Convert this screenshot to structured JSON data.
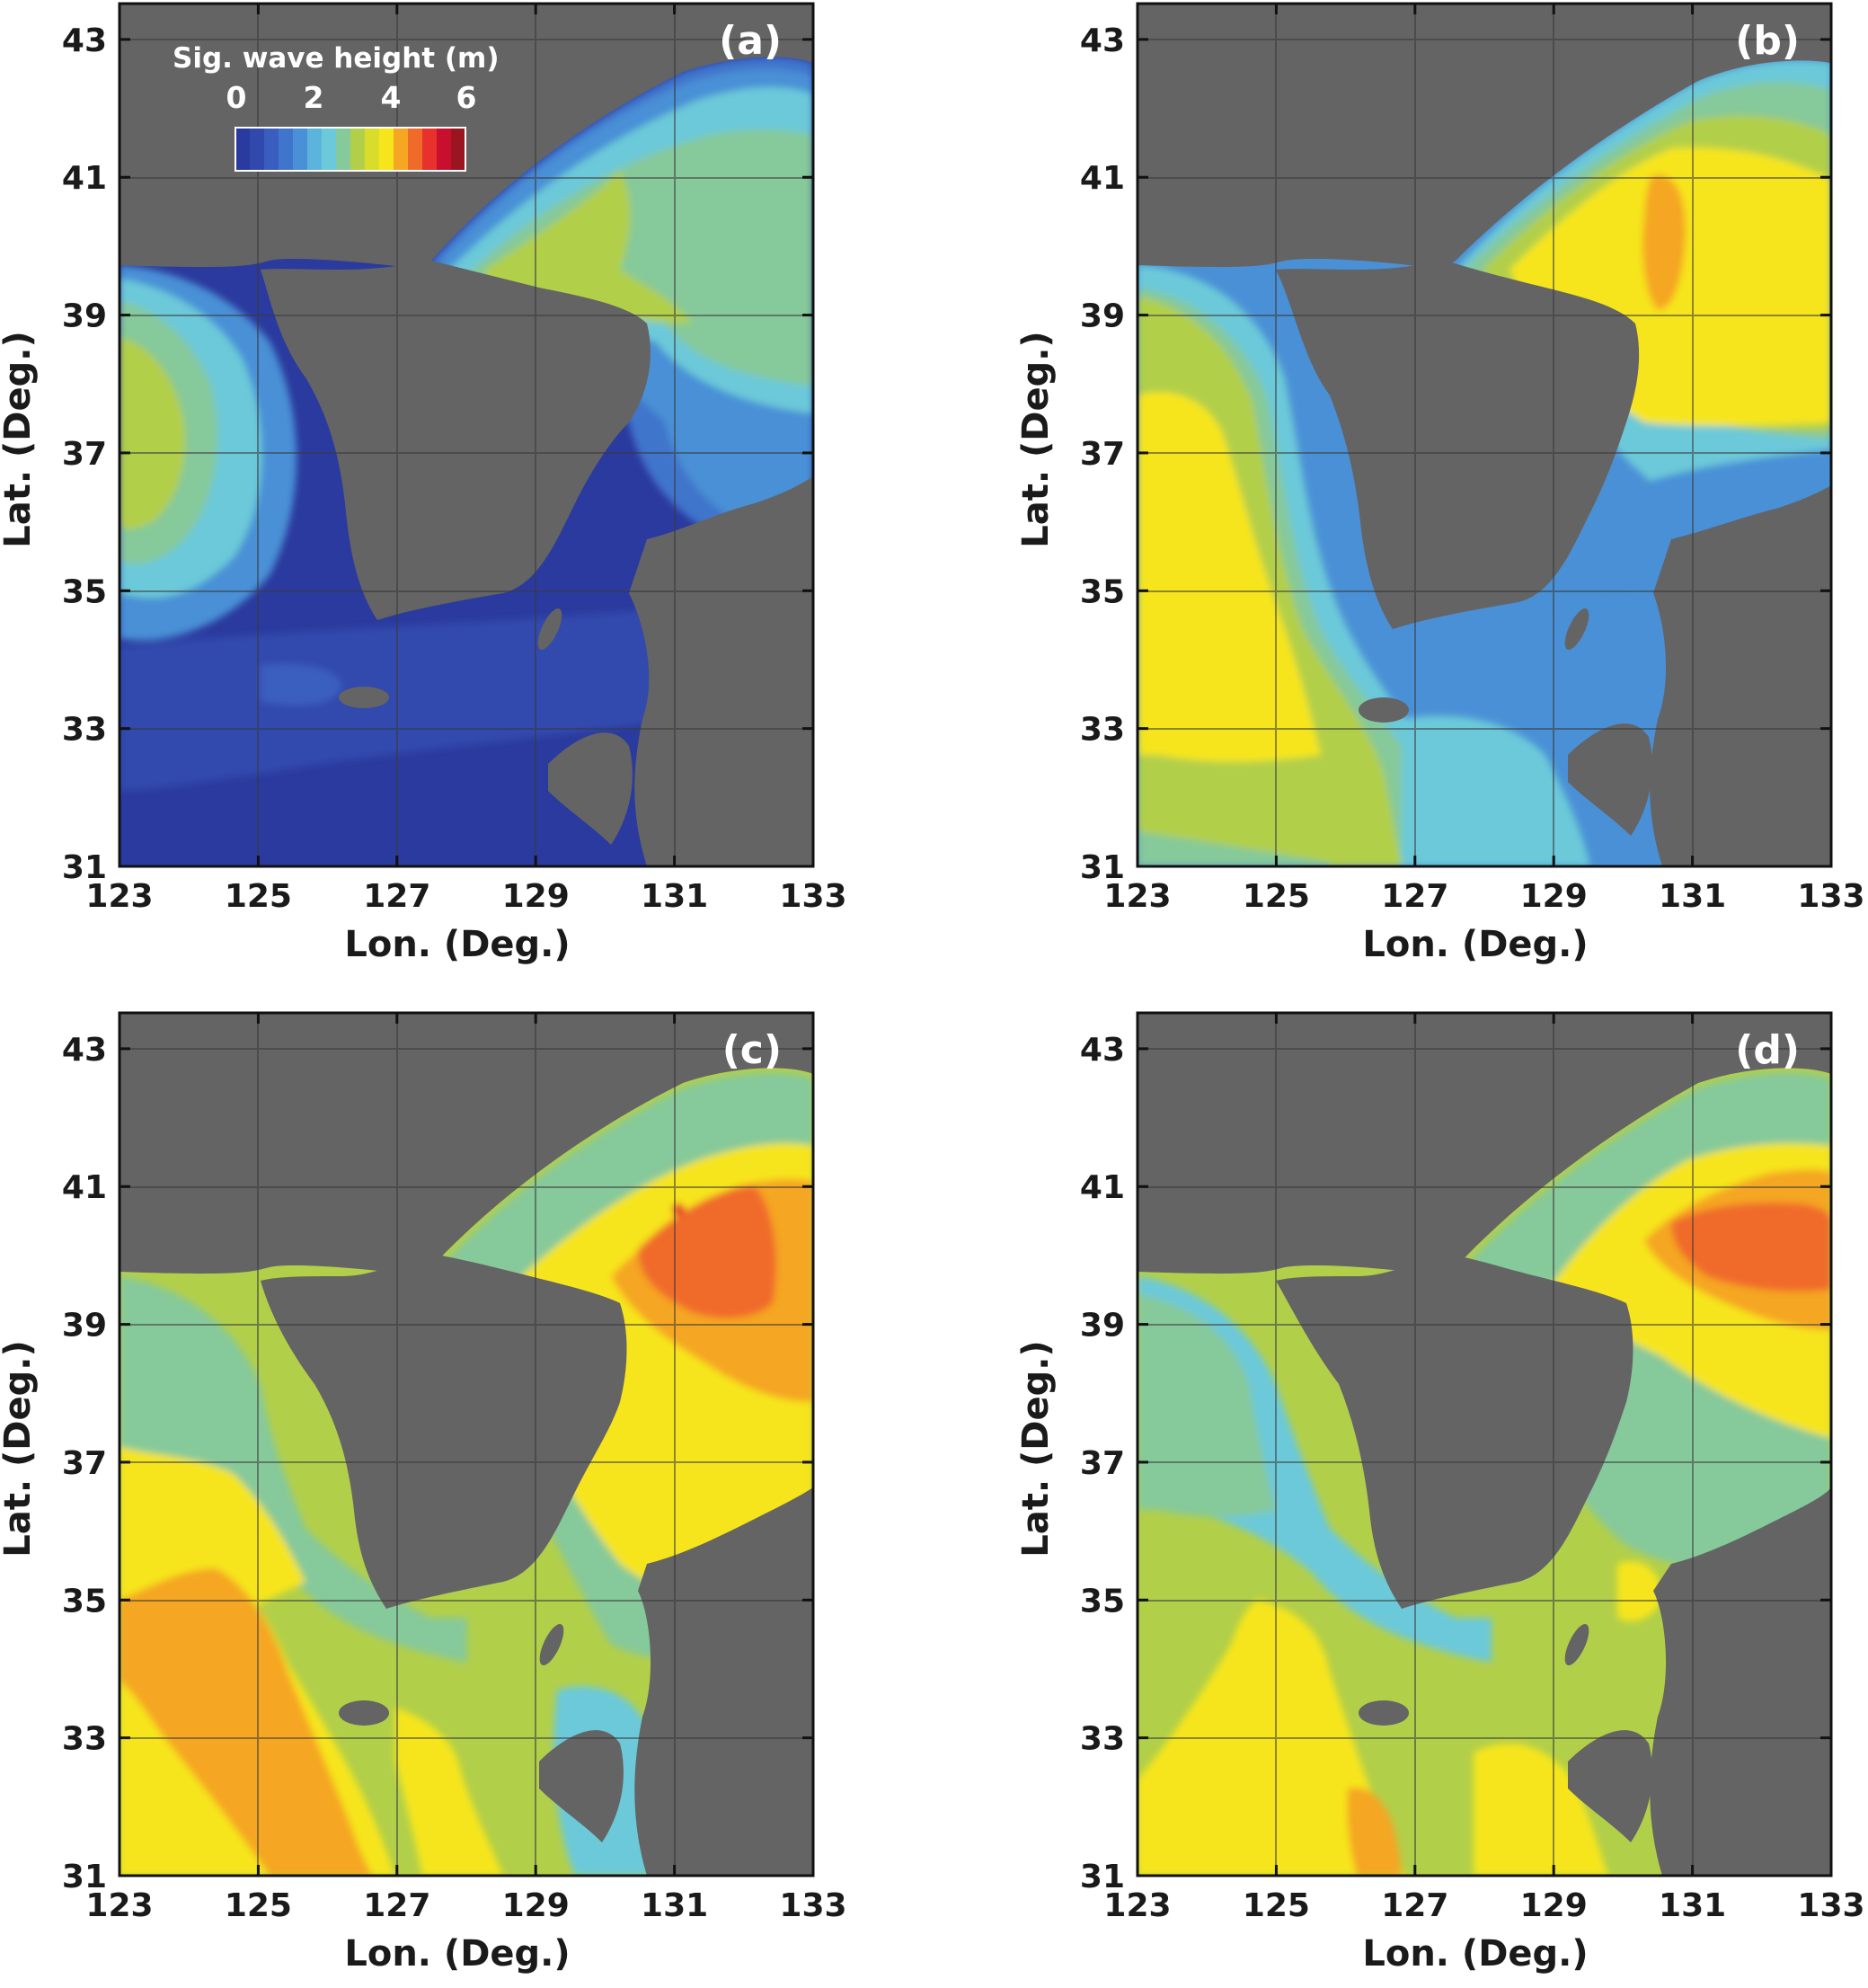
{
  "figure": {
    "colorbar": {
      "title": "Sig. wave height (m)",
      "ticks": [
        "0",
        "2",
        "4",
        "6"
      ],
      "colors": [
        "#2b3a9e",
        "#3149ad",
        "#3a5ebf",
        "#4075cc",
        "#4a90d6",
        "#5bb4dc",
        "#6cc9d9",
        "#86c99a",
        "#b2cf4a",
        "#d9dc2b",
        "#f6e51b",
        "#f5a623",
        "#f06a2a",
        "#e8312c",
        "#c8102e",
        "#991520"
      ]
    },
    "land_color": "#646464",
    "x_ticks": [
      "123",
      "125",
      "127",
      "129",
      "131",
      "133"
    ],
    "y_ticks": [
      "43",
      "41",
      "39",
      "37",
      "35",
      "33",
      "31"
    ],
    "x_label": "Lon. (Deg.)",
    "y_label": "Lat. (Deg.)",
    "panels": [
      {
        "label": "(a)",
        "max_wave_height_m": 2.5
      },
      {
        "label": "(b)",
        "max_wave_height_m": 4.3
      },
      {
        "label": "(c)",
        "max_wave_height_m": 5.0
      },
      {
        "label": "(d)",
        "max_wave_height_m": 4.8
      }
    ]
  }
}
